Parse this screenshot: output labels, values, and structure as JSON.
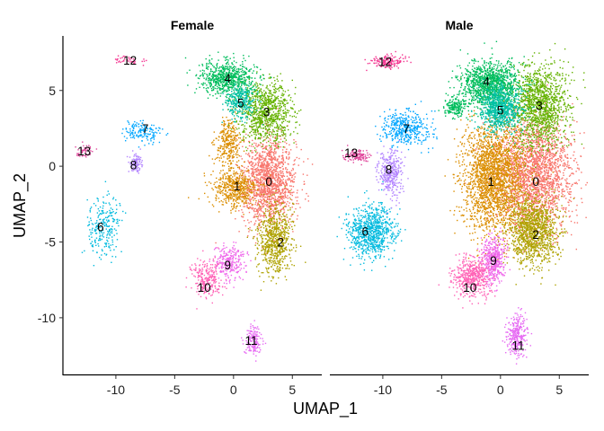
{
  "chart_data": {
    "type": "scatter",
    "xlabel": "UMAP_1",
    "ylabel": "UMAP_2",
    "xlim": [
      -14.5,
      7.5
    ],
    "ylim": [
      -13.8,
      8.6
    ],
    "x_ticks": [
      -10,
      -5,
      0,
      5
    ],
    "y_ticks": [
      5,
      0,
      -5,
      -10
    ],
    "facets": [
      "Female",
      "Male"
    ],
    "clusters": [
      {
        "id": "0",
        "color": "#F8766D",
        "female": {
          "label_at": [
            3.0,
            -1.0
          ],
          "blobs": [
            {
              "x": 3.0,
              "y": -1.0,
              "rx": 2.3,
              "ry": 2.9,
              "n": 1500
            }
          ]
        },
        "male": {
          "label_at": [
            3.0,
            -1.0
          ],
          "blobs": [
            {
              "x": 2.8,
              "y": -0.5,
              "rx": 3.3,
              "ry": 3.6,
              "n": 2200
            }
          ]
        }
      },
      {
        "id": "1",
        "color": "#DB8E00",
        "female": {
          "label_at": [
            0.3,
            -1.3
          ],
          "blobs": [
            {
              "x": 0.1,
              "y": -1.5,
              "rx": 1.9,
              "ry": 1.3,
              "n": 500
            },
            {
              "x": -0.4,
              "y": 1.5,
              "rx": 1.1,
              "ry": 1.6,
              "n": 300
            }
          ]
        },
        "male": {
          "label_at": [
            -0.8,
            -1.0
          ],
          "blobs": [
            {
              "x": -0.6,
              "y": -0.8,
              "rx": 2.7,
              "ry": 3.8,
              "n": 2200
            }
          ]
        }
      },
      {
        "id": "2",
        "color": "#AEA200",
        "female": {
          "label_at": [
            4.0,
            -5.0
          ],
          "blobs": [
            {
              "x": 3.5,
              "y": -4.8,
              "rx": 1.4,
              "ry": 2.3,
              "n": 700
            }
          ]
        },
        "male": {
          "label_at": [
            3.0,
            -4.5
          ],
          "blobs": [
            {
              "x": 2.8,
              "y": -4.3,
              "rx": 2.1,
              "ry": 2.2,
              "n": 1200
            }
          ]
        }
      },
      {
        "id": "3",
        "color": "#64B200",
        "female": {
          "label_at": [
            2.8,
            3.6
          ],
          "blobs": [
            {
              "x": 2.8,
              "y": 3.6,
              "rx": 2.2,
              "ry": 1.9,
              "n": 900
            }
          ]
        },
        "male": {
          "label_at": [
            3.3,
            4.0
          ],
          "blobs": [
            {
              "x": 3.3,
              "y": 4.0,
              "rx": 2.4,
              "ry": 2.6,
              "n": 1300
            }
          ]
        }
      },
      {
        "id": "4",
        "color": "#00BD5C",
        "female": {
          "label_at": [
            -0.5,
            5.8
          ],
          "blobs": [
            {
              "x": -0.5,
              "y": 5.8,
              "rx": 2.4,
              "ry": 1.1,
              "n": 700
            }
          ]
        },
        "male": {
          "label_at": [
            -1.2,
            5.6
          ],
          "blobs": [
            {
              "x": -1.0,
              "y": 5.4,
              "rx": 2.5,
              "ry": 1.5,
              "n": 1200
            },
            {
              "x": -3.9,
              "y": 3.9,
              "rx": 0.9,
              "ry": 0.6,
              "n": 180
            }
          ]
        }
      },
      {
        "id": "5",
        "color": "#00C1A7",
        "female": {
          "label_at": [
            0.6,
            4.2
          ],
          "blobs": [
            {
              "x": 0.6,
              "y": 4.2,
              "rx": 1.2,
              "ry": 1.1,
              "n": 300
            }
          ]
        },
        "male": {
          "label_at": [
            0.0,
            3.7
          ],
          "blobs": [
            {
              "x": 0.0,
              "y": 3.7,
              "rx": 1.7,
              "ry": 1.5,
              "n": 800
            }
          ]
        }
      },
      {
        "id": "6",
        "color": "#00BADE",
        "female": {
          "label_at": [
            -11.3,
            -4.0
          ],
          "blobs": [
            {
              "x": -11.0,
              "y": -4.0,
              "rx": 1.4,
              "ry": 2.0,
              "n": 240
            }
          ]
        },
        "male": {
          "label_at": [
            -11.5,
            -4.3
          ],
          "blobs": [
            {
              "x": -11.0,
              "y": -4.3,
              "rx": 2.0,
              "ry": 1.7,
              "n": 800
            }
          ]
        }
      },
      {
        "id": "7",
        "color": "#00A6FF",
        "female": {
          "label_at": [
            -7.5,
            2.5
          ],
          "blobs": [
            {
              "x": -7.8,
              "y": 2.3,
              "rx": 1.5,
              "ry": 0.7,
              "n": 150
            }
          ]
        },
        "male": {
          "label_at": [
            -8.0,
            2.5
          ],
          "blobs": [
            {
              "x": -8.0,
              "y": 2.5,
              "rx": 2.0,
              "ry": 1.1,
              "n": 400
            }
          ]
        }
      },
      {
        "id": "8",
        "color": "#B385FF",
        "female": {
          "label_at": [
            -8.5,
            0.1
          ],
          "blobs": [
            {
              "x": -8.3,
              "y": 0.2,
              "rx": 0.6,
              "ry": 0.6,
              "n": 110
            }
          ]
        },
        "male": {
          "label_at": [
            -9.5,
            -0.2
          ],
          "blobs": [
            {
              "x": -9.4,
              "y": -0.5,
              "rx": 1.0,
              "ry": 1.5,
              "n": 350
            }
          ]
        }
      },
      {
        "id": "9",
        "color": "#EF67EB",
        "female": {
          "label_at": [
            -0.5,
            -6.5
          ],
          "blobs": [
            {
              "x": -0.4,
              "y": -6.4,
              "rx": 1.3,
              "ry": 1.2,
              "n": 250
            }
          ]
        },
        "male": {
          "label_at": [
            -0.6,
            -6.2
          ],
          "blobs": [
            {
              "x": -0.6,
              "y": -6.2,
              "rx": 1.1,
              "ry": 1.6,
              "n": 450
            }
          ]
        }
      },
      {
        "id": "10",
        "color": "#FF63B6",
        "female": {
          "label_at": [
            -2.5,
            -8.0
          ],
          "blobs": [
            {
              "x": -2.3,
              "y": -7.5,
              "rx": 1.3,
              "ry": 1.2,
              "n": 250
            }
          ]
        },
        "male": {
          "label_at": [
            -2.6,
            -8.0
          ],
          "blobs": [
            {
              "x": -2.4,
              "y": -7.3,
              "rx": 1.6,
              "ry": 1.3,
              "n": 500
            }
          ]
        }
      },
      {
        "id": "11",
        "color": "#E76BF3",
        "female": {
          "label_at": [
            1.5,
            -11.5
          ],
          "blobs": [
            {
              "x": 1.7,
              "y": -11.5,
              "rx": 0.7,
              "ry": 1.1,
              "n": 150
            }
          ]
        },
        "male": {
          "label_at": [
            1.5,
            -11.8
          ],
          "blobs": [
            {
              "x": 1.4,
              "y": -11.2,
              "rx": 0.8,
              "ry": 1.3,
              "n": 300
            }
          ]
        }
      },
      {
        "id": "12",
        "color": "#F4328F",
        "female": {
          "label_at": [
            -8.8,
            7.0
          ],
          "blobs": [
            {
              "x": -9.0,
              "y": 7.0,
              "rx": 1.5,
              "ry": 0.25,
              "n": 40
            }
          ]
        },
        "male": {
          "label_at": [
            -9.8,
            6.9
          ],
          "blobs": [
            {
              "x": -9.5,
              "y": 6.9,
              "rx": 1.4,
              "ry": 0.45,
              "n": 140
            }
          ]
        }
      },
      {
        "id": "13",
        "color": "#E0479C",
        "female": {
          "label_at": [
            -12.7,
            1.0
          ],
          "blobs": [
            {
              "x": -12.6,
              "y": 1.0,
              "rx": 0.8,
              "ry": 0.4,
              "n": 50
            }
          ]
        },
        "male": {
          "label_at": [
            -12.7,
            0.9
          ],
          "blobs": [
            {
              "x": -12.1,
              "y": 0.7,
              "rx": 1.1,
              "ry": 0.45,
              "n": 120
            }
          ]
        }
      }
    ]
  }
}
